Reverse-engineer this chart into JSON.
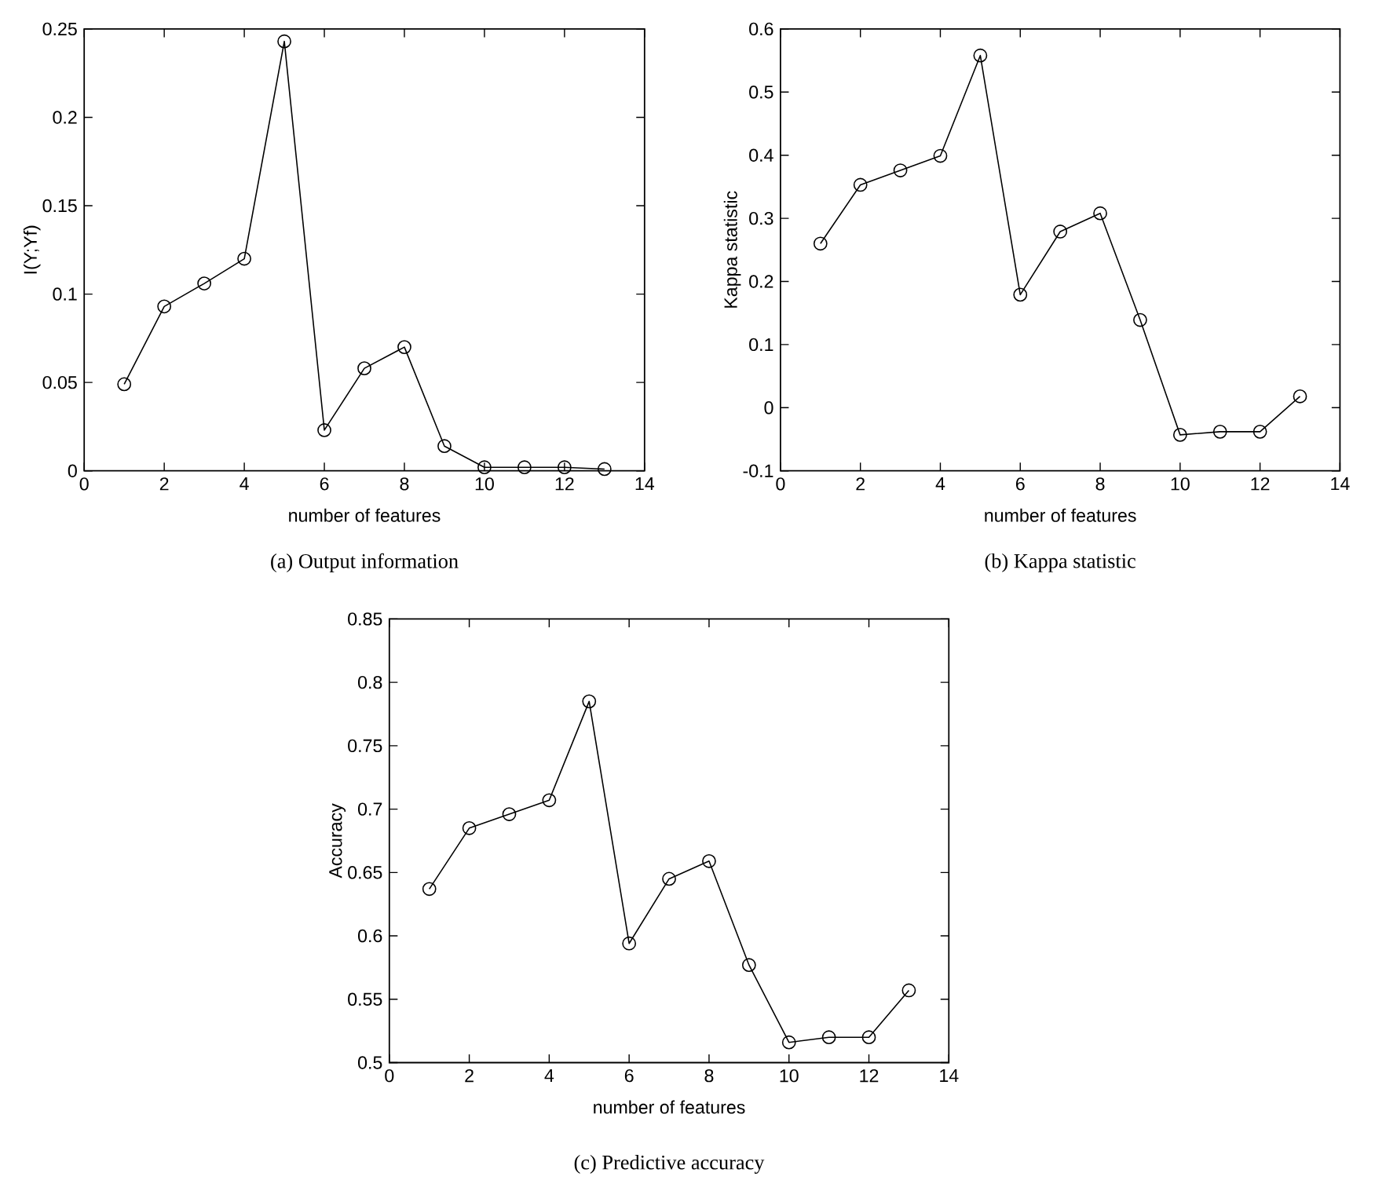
{
  "chart_data": [
    {
      "type": "line",
      "title": "(a) Output information",
      "xlabel": "number of features",
      "ylabel": "I(Y;Yf)",
      "color": "#000000",
      "marker": "circle",
      "x": [
        1,
        2,
        3,
        4,
        5,
        6,
        7,
        8,
        9,
        10,
        11,
        12,
        13
      ],
      "values": [
        0.049,
        0.093,
        0.106,
        0.12,
        0.243,
        0.023,
        0.058,
        0.07,
        0.014,
        0.002,
        0.002,
        0.002,
        0.001
      ],
      "xlim": [
        0,
        14
      ],
      "xticks": [
        0,
        2,
        4,
        6,
        8,
        10,
        12,
        14
      ],
      "ylim": [
        0,
        0.25
      ],
      "yticks": [
        0,
        0.05,
        0.1,
        0.15,
        0.2,
        0.25
      ]
    },
    {
      "type": "line",
      "title": "(b) Kappa statistic",
      "xlabel": "number of features",
      "ylabel": "Kappa statistic",
      "color": "#000000",
      "marker": "circle",
      "x": [
        1,
        2,
        3,
        4,
        5,
        6,
        7,
        8,
        9,
        10,
        11,
        12,
        13
      ],
      "values": [
        0.26,
        0.353,
        0.376,
        0.399,
        0.558,
        0.179,
        0.279,
        0.308,
        0.139,
        -0.043,
        -0.038,
        -0.038,
        0.018
      ],
      "xlim": [
        0,
        14
      ],
      "xticks": [
        0,
        2,
        4,
        6,
        8,
        10,
        12,
        14
      ],
      "ylim": [
        -0.1,
        0.6
      ],
      "yticks": [
        -0.1,
        0,
        0.1,
        0.2,
        0.3,
        0.4,
        0.5,
        0.6
      ]
    },
    {
      "type": "line",
      "title": "(c) Predictive accuracy",
      "xlabel": "number of features",
      "ylabel": "Accuracy",
      "color": "#000000",
      "marker": "circle",
      "x": [
        1,
        2,
        3,
        4,
        5,
        6,
        7,
        8,
        9,
        10,
        11,
        12,
        13
      ],
      "values": [
        0.637,
        0.685,
        0.696,
        0.707,
        0.785,
        0.594,
        0.645,
        0.659,
        0.577,
        0.516,
        0.52,
        0.52,
        0.557
      ],
      "xlim": [
        0,
        14
      ],
      "xticks": [
        0,
        2,
        4,
        6,
        8,
        10,
        12,
        14
      ],
      "ylim": [
        0.5,
        0.85
      ],
      "yticks": [
        0.5,
        0.55,
        0.6,
        0.65,
        0.7,
        0.75,
        0.8,
        0.85
      ]
    }
  ]
}
